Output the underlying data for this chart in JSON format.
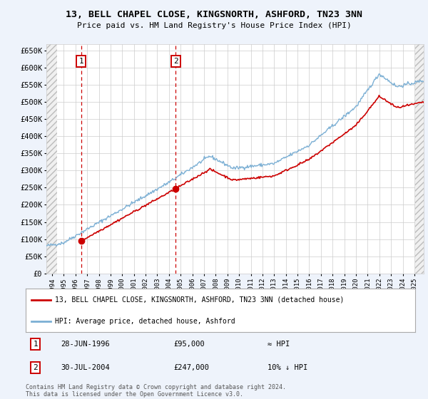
{
  "title": "13, BELL CHAPEL CLOSE, KINGSNORTH, ASHFORD, TN23 3NN",
  "subtitle": "Price paid vs. HM Land Registry's House Price Index (HPI)",
  "ylim": [
    0,
    670000
  ],
  "yticks": [
    0,
    50000,
    100000,
    150000,
    200000,
    250000,
    300000,
    350000,
    400000,
    450000,
    500000,
    550000,
    600000,
    650000
  ],
  "xlim_start": 1993.5,
  "xlim_end": 2025.8,
  "hatch_left_end": 1994.42,
  "hatch_right_start": 2025.08,
  "sale1_date": 1996.49,
  "sale1_price": 95000,
  "sale2_date": 2004.58,
  "sale2_price": 247000,
  "sale_color": "#cc0000",
  "hpi_color": "#7bafd4",
  "legend_label_sale": "13, BELL CHAPEL CLOSE, KINGSNORTH, ASHFORD, TN23 3NN (detached house)",
  "legend_label_hpi": "HPI: Average price, detached house, Ashford",
  "annotation1_label": "1",
  "annotation1_date": "28-JUN-1996",
  "annotation1_price": "£95,000",
  "annotation1_rel": "≈ HPI",
  "annotation2_label": "2",
  "annotation2_date": "30-JUL-2004",
  "annotation2_price": "£247,000",
  "annotation2_rel": "10% ↓ HPI",
  "footer": "Contains HM Land Registry data © Crown copyright and database right 2024.\nThis data is licensed under the Open Government Licence v3.0.",
  "bg_color": "#eef3fb",
  "plot_bg": "#ffffff"
}
